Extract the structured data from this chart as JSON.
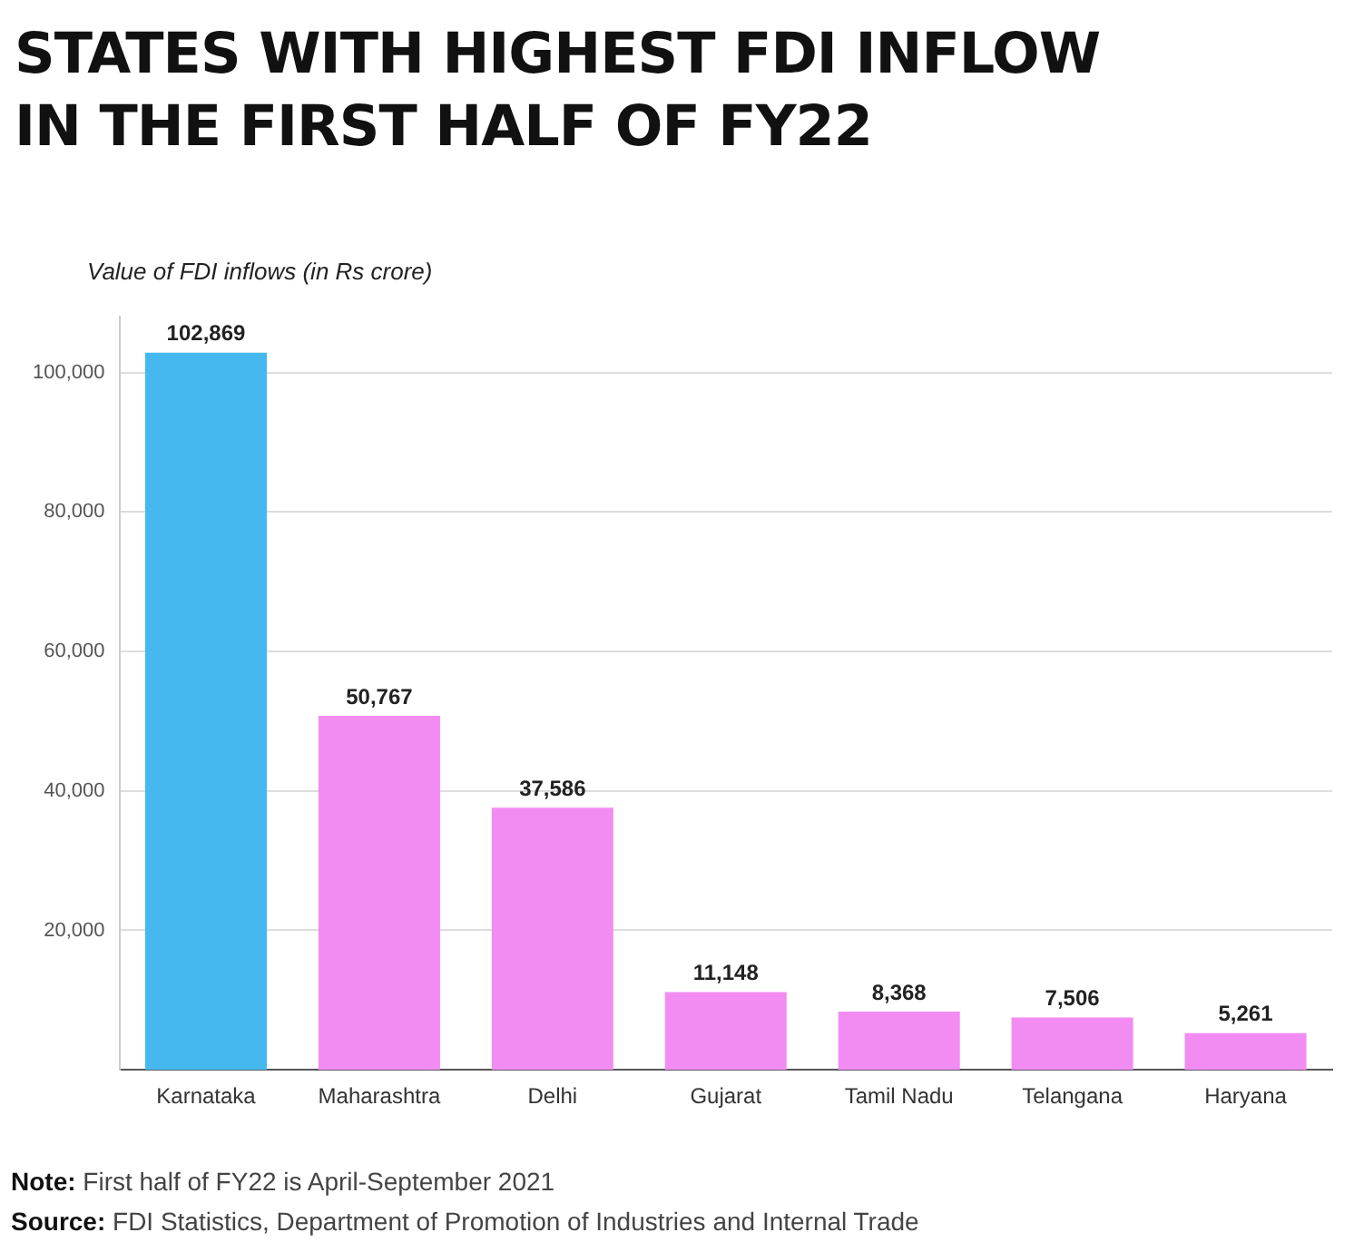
{
  "chart_data": {
    "type": "bar",
    "title": "STATES WITH HIGHEST FDI INFLOW IN THE FIRST HALF OF FY22",
    "ylabel": "Value of FDI inflows (in Rs crore)",
    "categories": [
      "Karnataka",
      "Maharashtra",
      "Delhi",
      "Gujarat",
      "Tamil Nadu",
      "Telangana",
      "Haryana"
    ],
    "values": [
      102869,
      50767,
      37586,
      11148,
      8368,
      7506,
      5261
    ],
    "value_labels": [
      "102,869",
      "50,767",
      "37,586",
      "11,148",
      "8,368",
      "7,506",
      "5,261"
    ],
    "colors": [
      "#45b9ef",
      "#f28cf3",
      "#f28cf3",
      "#f28cf3",
      "#f28cf3",
      "#f28cf3",
      "#f28cf3"
    ],
    "ylim": [
      0,
      108000
    ],
    "yticks": [
      {
        "value": 20000,
        "label": "20,000"
      },
      {
        "value": 40000,
        "label": "40,000"
      },
      {
        "value": 60000,
        "label": "60,000"
      },
      {
        "value": 80000,
        "label": "80,000"
      },
      {
        "value": 100000,
        "label": "100,000"
      }
    ],
    "grid": "y",
    "legend": false,
    "annotations": [
      "Note: First half of FY22 is April-September 2021",
      "Source: FDI Statistics, Department of Promotion of Industries and Internal Trade"
    ]
  }
}
